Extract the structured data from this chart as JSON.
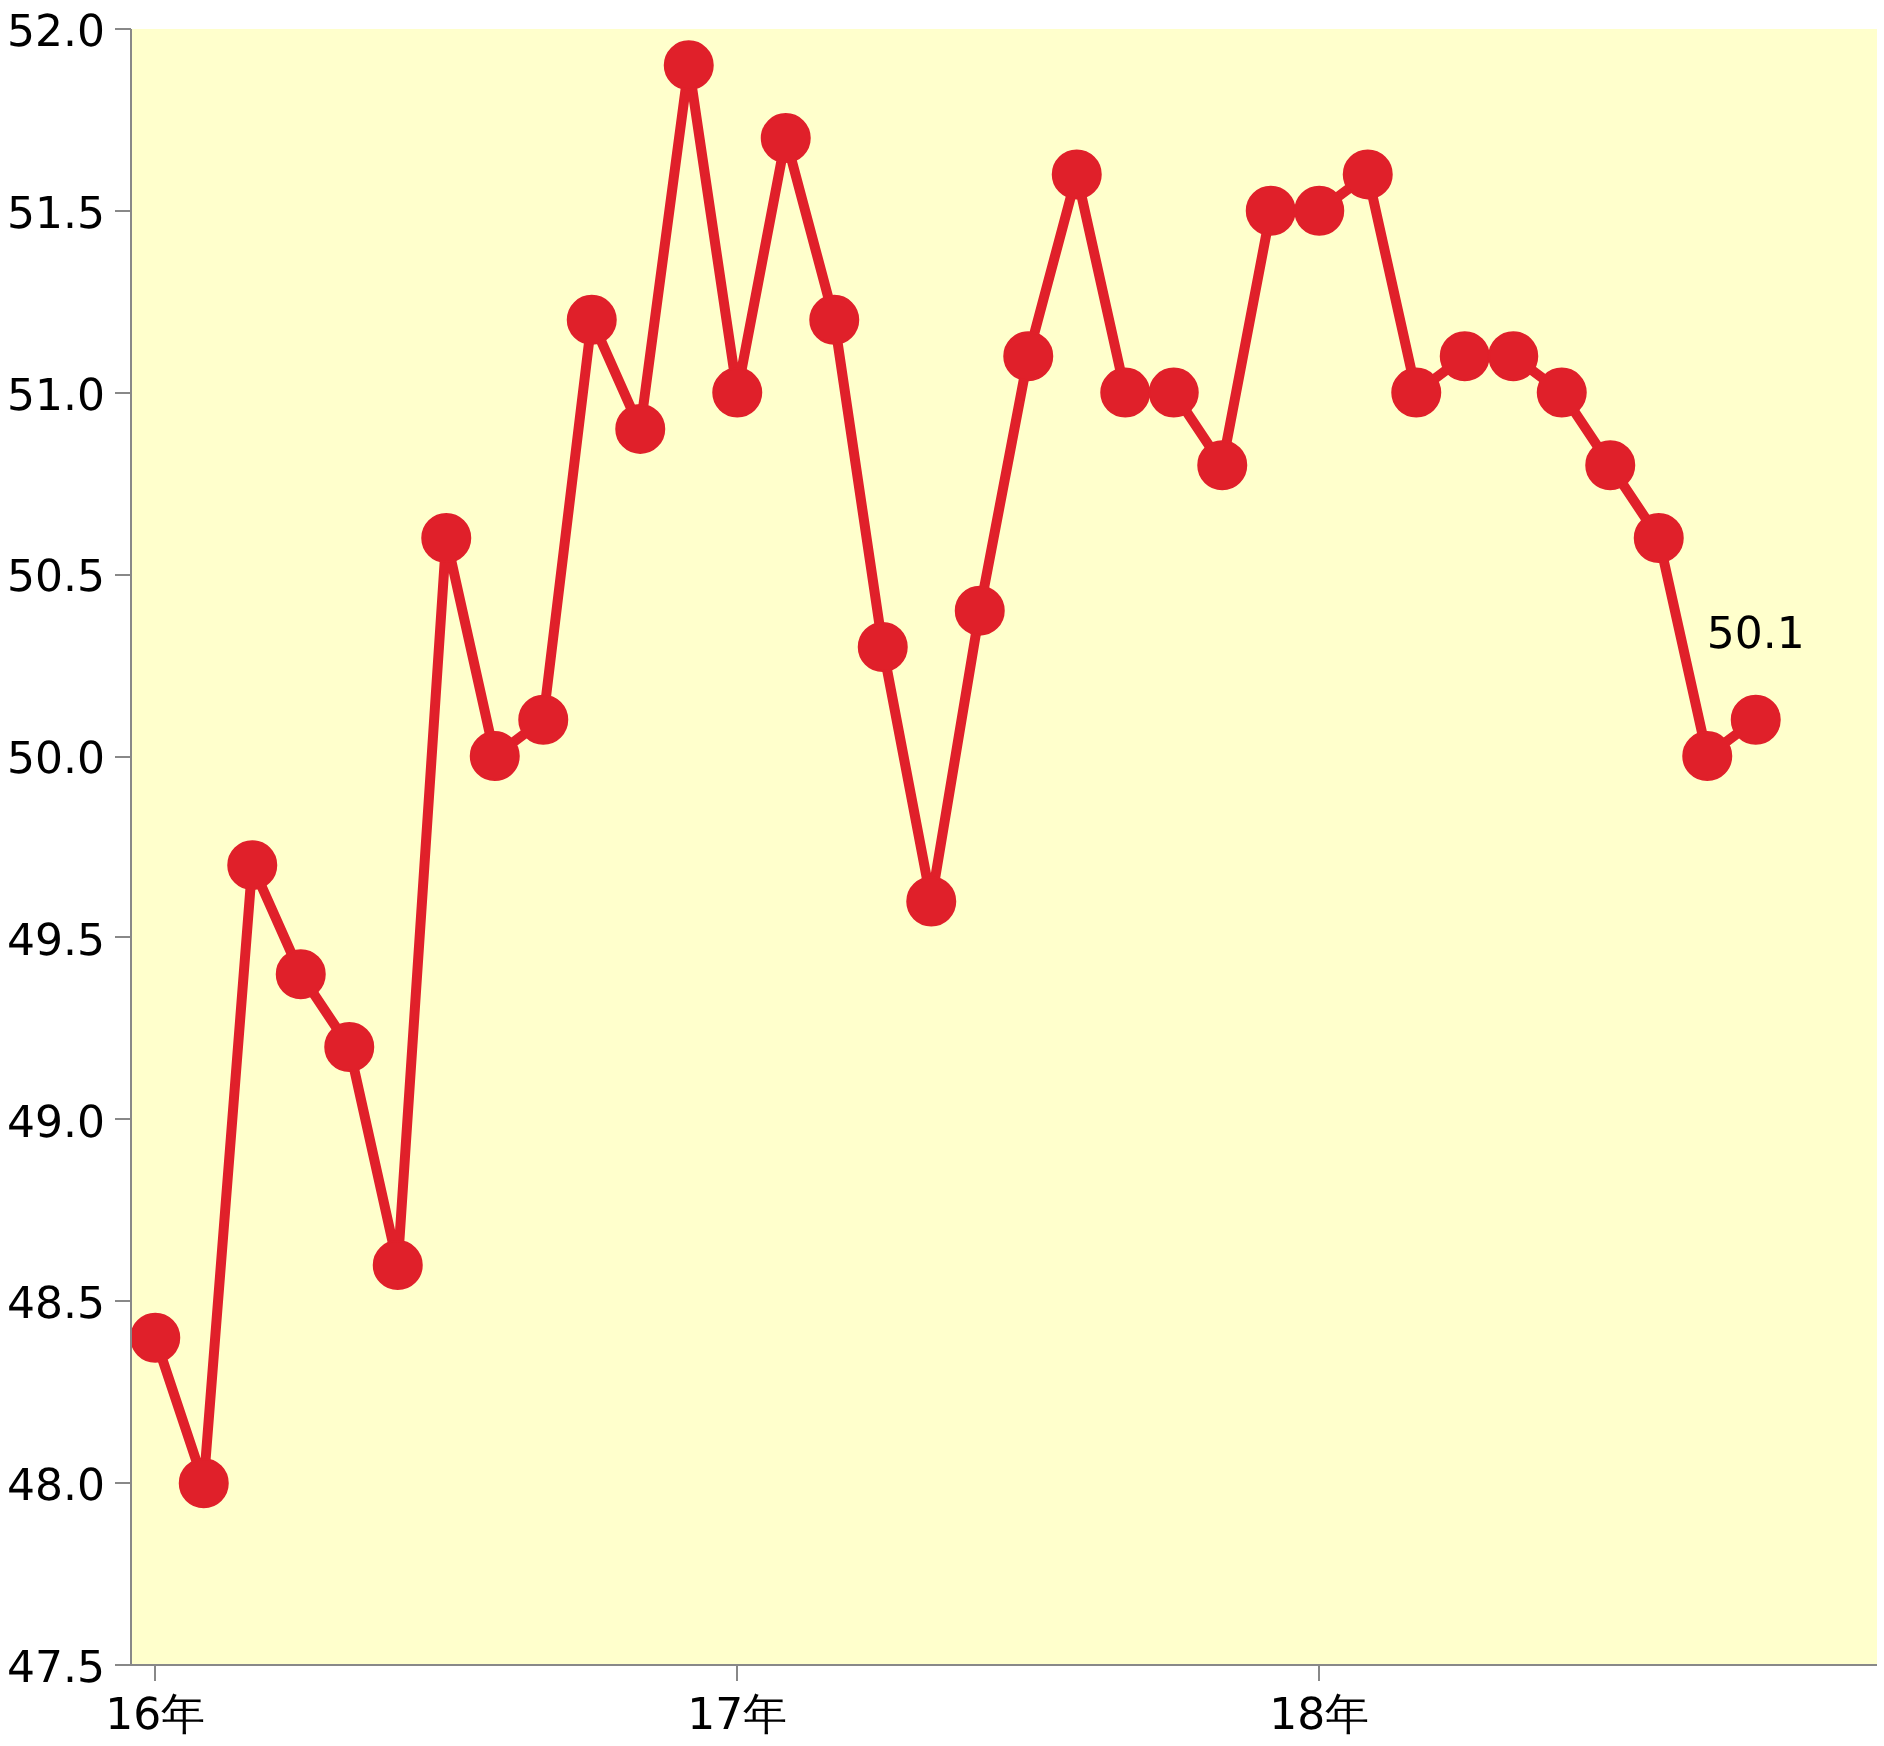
{
  "chart_data": {
    "type": "line",
    "categories": [
      "16年",
      null,
      null,
      null,
      null,
      null,
      null,
      null,
      null,
      null,
      null,
      null,
      "17年",
      null,
      null,
      null,
      null,
      null,
      null,
      null,
      null,
      null,
      null,
      null,
      "18年",
      null,
      null,
      null,
      null,
      null,
      null,
      null,
      null,
      null,
      null,
      null
    ],
    "series": [
      {
        "color": "#e0202a",
        "values": [
          48.4,
          48.0,
          49.7,
          49.4,
          49.2,
          48.6,
          50.6,
          50.0,
          50.1,
          51.2,
          50.9,
          51.9,
          51.0,
          51.7,
          51.2,
          50.3,
          49.6,
          50.4,
          51.1,
          51.6,
          51.0,
          51.0,
          50.8,
          51.5,
          51.5,
          51.6,
          51.0,
          51.1,
          51.1,
          51.0,
          50.8,
          50.6,
          50.0,
          50.1,
          null,
          null
        ],
        "value_labels": [
          null,
          null,
          null,
          null,
          null,
          null,
          null,
          null,
          null,
          null,
          null,
          null,
          null,
          null,
          null,
          null,
          null,
          null,
          null,
          null,
          null,
          null,
          null,
          null,
          null,
          null,
          null,
          null,
          null,
          null,
          null,
          null,
          null,
          "50.1",
          null,
          null
        ]
      }
    ],
    "ylim": [
      47.5,
      52.0
    ],
    "yticks": [
      {
        "value": 47.5,
        "label": "47.5"
      },
      {
        "value": 48.0,
        "label": "48.0"
      },
      {
        "value": 48.5,
        "label": "48.5"
      },
      {
        "value": 49.0,
        "label": "49.0"
      },
      {
        "value": 49.5,
        "label": "49.5"
      },
      {
        "value": 50.0,
        "label": "50.0"
      },
      {
        "value": 50.5,
        "label": "50.5"
      },
      {
        "value": 51.0,
        "label": "51.0"
      },
      {
        "value": 51.5,
        "label": "51.5"
      },
      {
        "value": 52.0,
        "label": "52.0"
      }
    ],
    "grid": false,
    "marker": "circle",
    "line_style": "solid"
  }
}
